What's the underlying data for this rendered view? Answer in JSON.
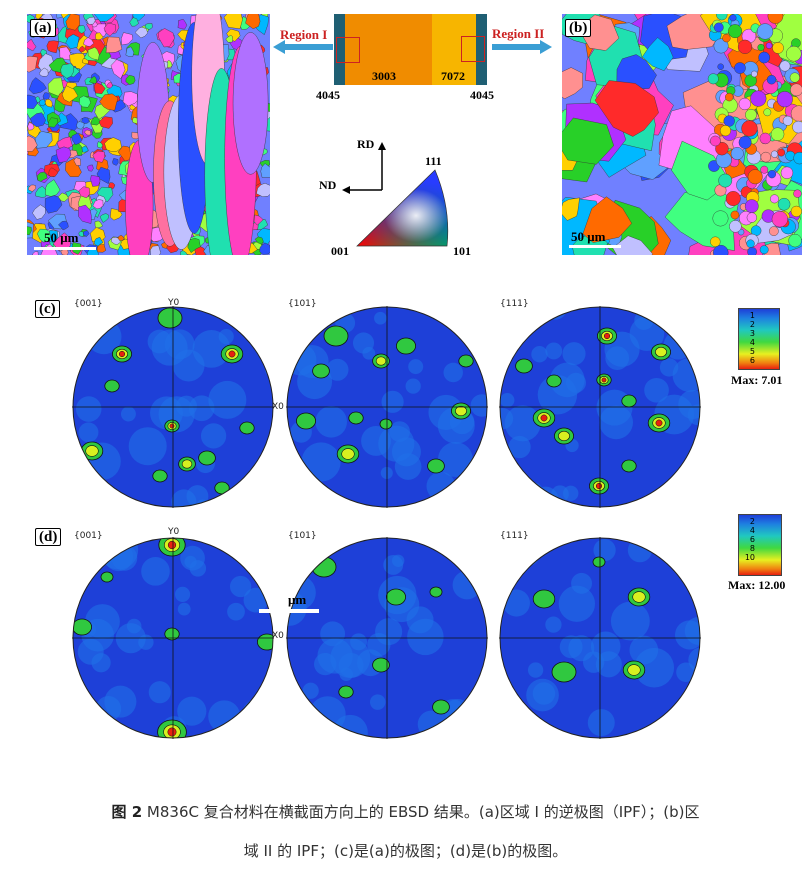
{
  "panels": {
    "a_label": "(a)",
    "b_label": "(b)",
    "c_label": "(c)",
    "d_label": "(d)",
    "scale_a": "50 μm",
    "scale_b": "50 μm",
    "scale_d_fragment": "μm"
  },
  "schematic": {
    "region1": "Region I",
    "region2": "Region II",
    "layer_center_left": "3003",
    "layer_center_right": "7072",
    "layer_left": "4045",
    "layer_right": "4045"
  },
  "ipf_key": {
    "rd": "RD",
    "nd": "ND",
    "v111": "111",
    "v001": "001",
    "v101": "101"
  },
  "pole_figures": {
    "c_titles": [
      "{001}",
      "{101}",
      "{111}"
    ],
    "d_titles": [
      "{001}",
      "{101}",
      "{111}"
    ],
    "y_axis": "Y0",
    "x_axis": "X0",
    "c_legend_levels": [
      "1",
      "2",
      "3",
      "4",
      "5",
      "6"
    ],
    "c_max": "Max: 7.01",
    "d_legend_levels": [
      "2",
      "4",
      "6",
      "8",
      "10"
    ],
    "d_max": "Max: 12.00"
  },
  "caption": {
    "fig_no": "图 2",
    "line1": " M836C 复合材料在横截面方向上的 EBSD 结果。(a)区域 I 的逆极图（IPF）；(b)区",
    "line2": "域 II 的 IPF；(c)是(a)的极图；(d)是(b)的极图。"
  },
  "colors": {
    "pf_background": "#1e40d8",
    "accent_red": "#cc2222",
    "layer_core": "#f39c12",
    "layer_clad": "#1f5f73"
  }
}
